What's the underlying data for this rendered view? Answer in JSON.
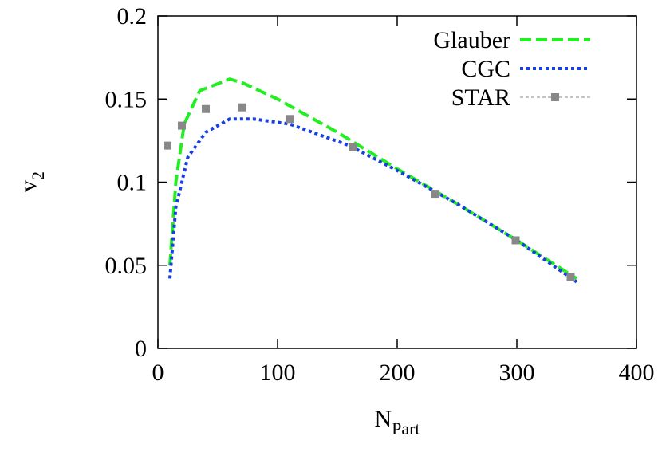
{
  "chart_data": {
    "type": "line",
    "x_label": {
      "main": "N",
      "sub": "Part"
    },
    "y_label": {
      "main": "v",
      "sub": "2"
    },
    "xlim": [
      0,
      400
    ],
    "xticks": [
      0,
      100,
      200,
      300,
      400
    ],
    "ylim": [
      0,
      0.2
    ],
    "yticks": [
      0,
      0.05,
      0.1,
      0.15,
      0.2
    ],
    "legend": "upper right",
    "series": [
      {
        "name": "Glauber",
        "color": "#22ee22",
        "style": "dashed",
        "x": [
          10,
          15,
          22,
          35,
          60,
          70,
          100,
          150,
          200,
          250,
          300,
          350
        ],
        "values": [
          0.05,
          0.1,
          0.135,
          0.155,
          0.162,
          0.16,
          0.15,
          0.13,
          0.108,
          0.087,
          0.065,
          0.042
        ]
      },
      {
        "name": "CGC",
        "color": "#1a3fe0",
        "style": "dotted",
        "x": [
          10,
          15,
          25,
          40,
          60,
          80,
          110,
          160,
          200,
          250,
          300,
          350
        ],
        "values": [
          0.042,
          0.085,
          0.115,
          0.13,
          0.138,
          0.138,
          0.135,
          0.122,
          0.107,
          0.087,
          0.065,
          0.04
        ]
      },
      {
        "name": "STAR",
        "color": "#888888",
        "style": "points",
        "x": [
          8,
          20,
          40,
          70,
          110,
          163,
          232,
          299,
          345
        ],
        "values": [
          0.122,
          0.134,
          0.144,
          0.145,
          0.138,
          0.121,
          0.093,
          0.065,
          0.043
        ],
        "errors": [
          0.002,
          0.002,
          0.002,
          0.002,
          0.002,
          0.002,
          0.002,
          0.002,
          0.002
        ]
      }
    ]
  }
}
